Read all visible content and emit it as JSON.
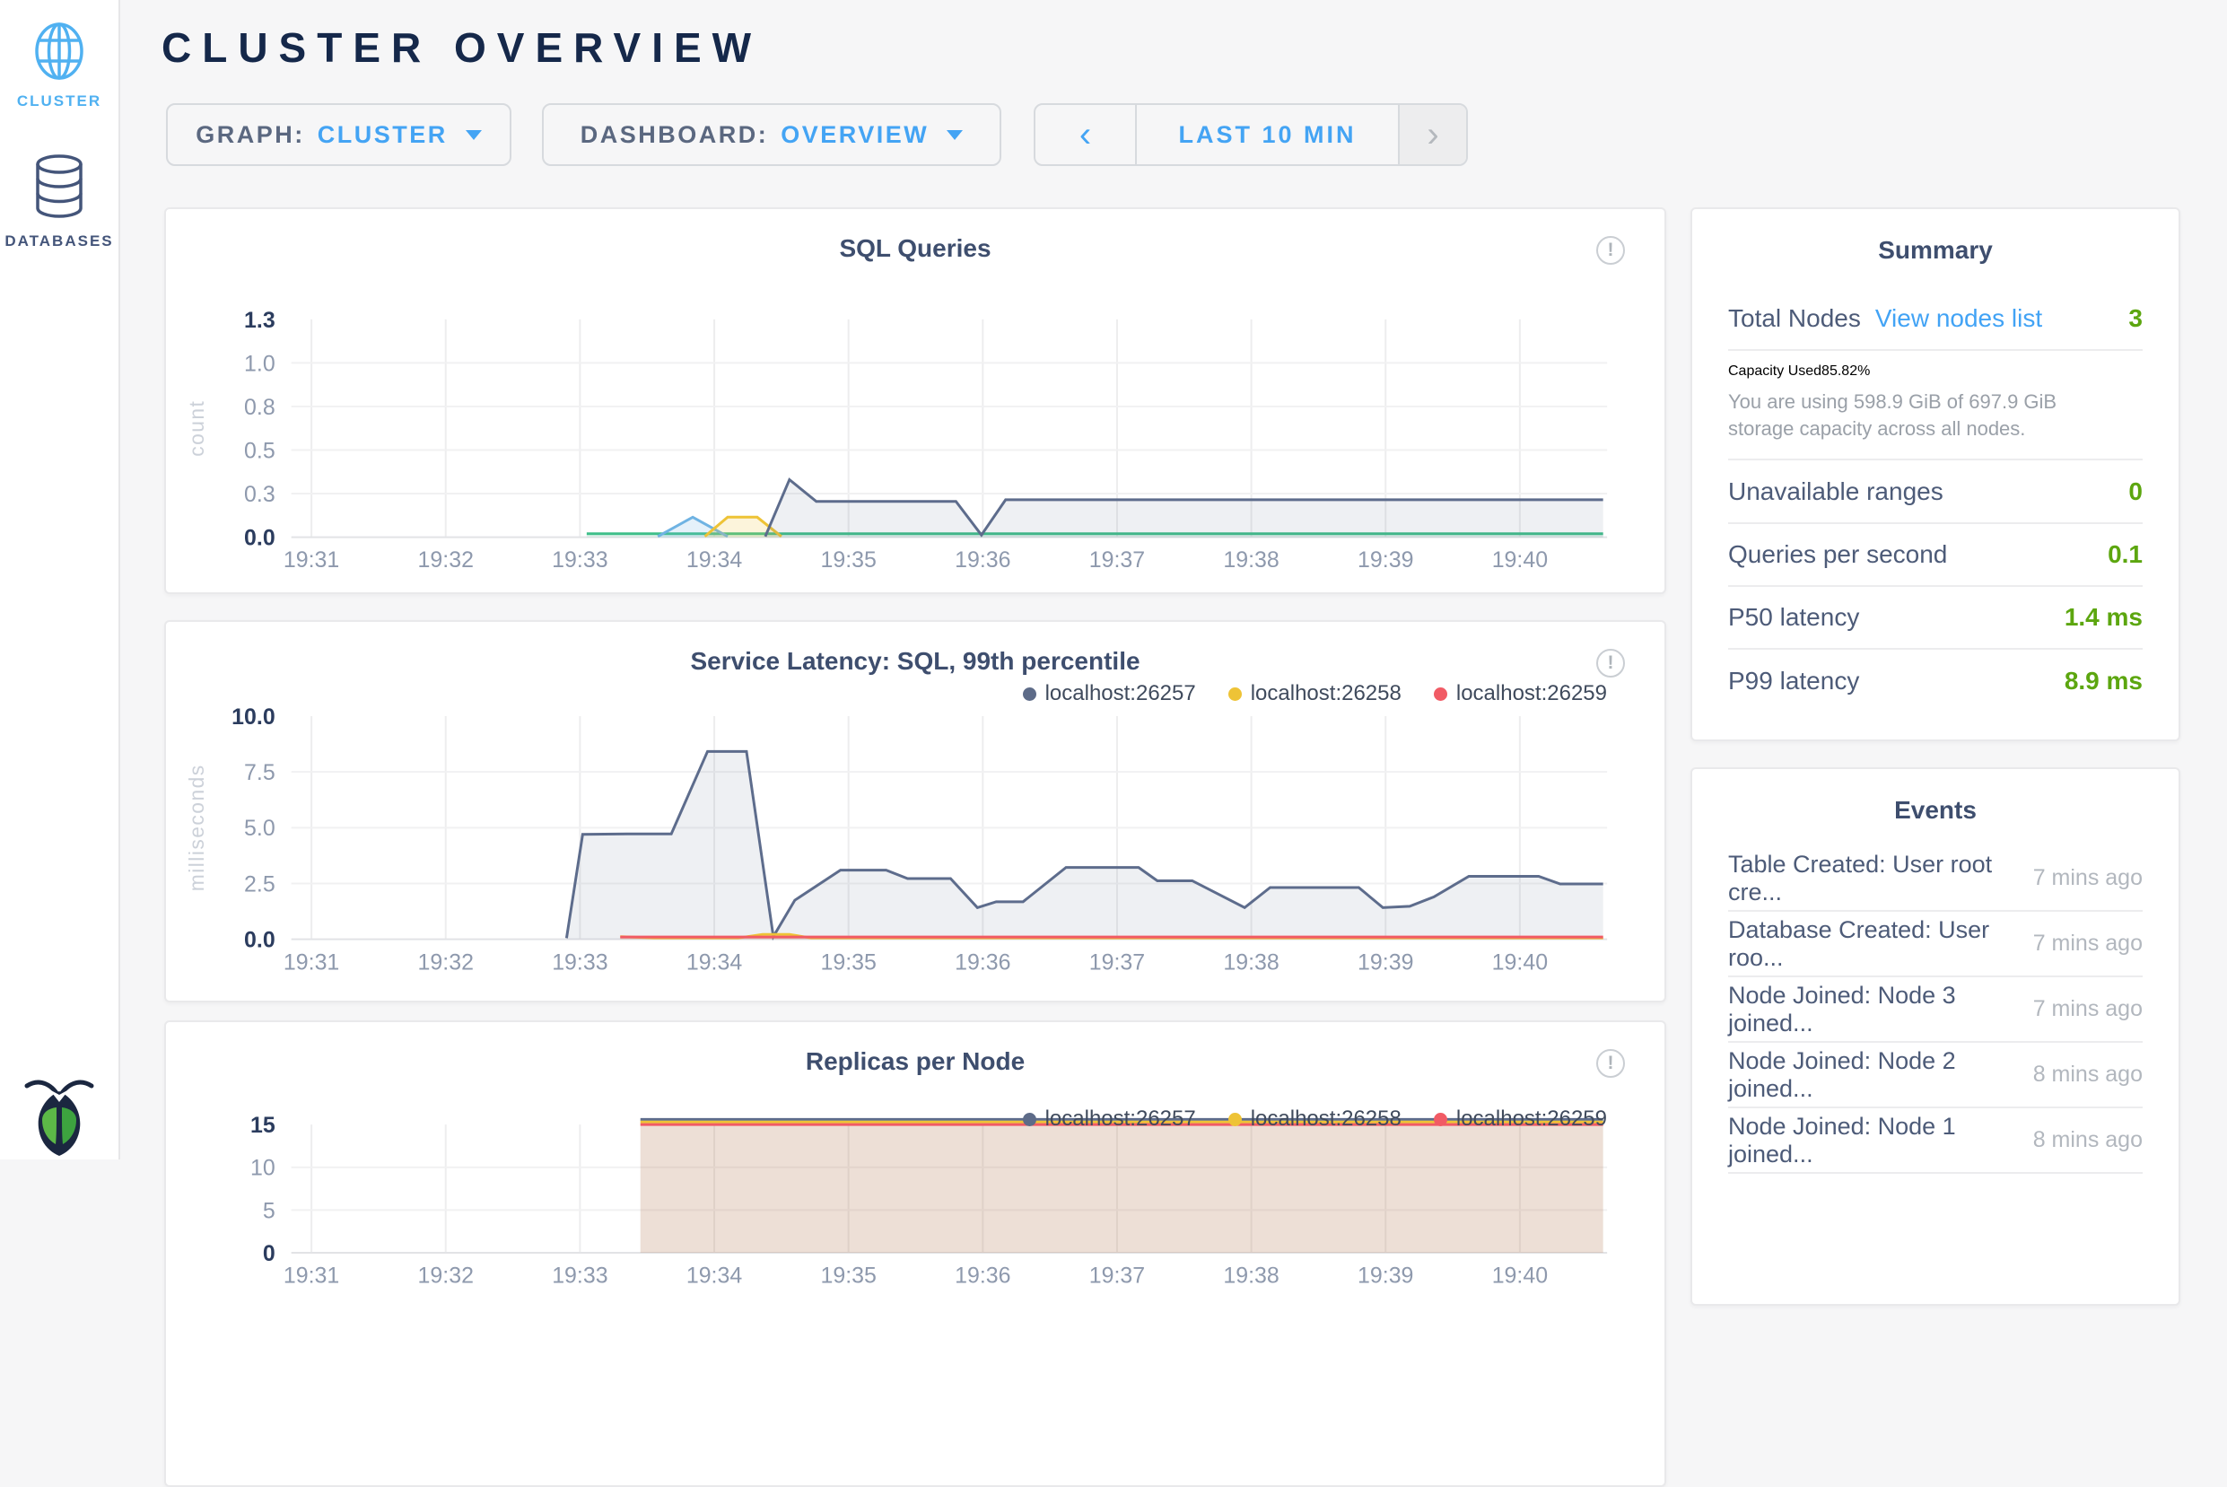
{
  "app": {
    "title": "CLUSTER OVERVIEW"
  },
  "sidebar": {
    "items": [
      {
        "label": "CLUSTER"
      },
      {
        "label": "DATABASES"
      }
    ]
  },
  "controls": {
    "graph": {
      "label": "GRAPH:",
      "value": "CLUSTER"
    },
    "dashboard": {
      "label": "DASHBOARD:",
      "value": "OVERVIEW"
    },
    "time": {
      "range": "LAST 10 MIN",
      "prev": "‹",
      "next": "›"
    }
  },
  "summary": {
    "title": "Summary",
    "total_nodes_label": "Total Nodes",
    "view_nodes_link": "View nodes list",
    "total_nodes_value": "3",
    "capacity_label": "Capacity Used",
    "capacity_value": "85.82%",
    "capacity_description": "You are using 598.9 GiB of 697.9 GiB storage capacity across all nodes.",
    "rows": [
      {
        "label": "Unavailable ranges",
        "value": "0"
      },
      {
        "label": "Queries per second",
        "value": "0.1"
      },
      {
        "label": "P50 latency",
        "value": "1.4 ms"
      },
      {
        "label": "P99 latency",
        "value": "8.9 ms"
      }
    ]
  },
  "events": {
    "title": "Events",
    "items": [
      {
        "text": "Table Created: User root cre...",
        "time": "7 mins ago"
      },
      {
        "text": "Database Created: User roo...",
        "time": "7 mins ago"
      },
      {
        "text": "Node Joined: Node 3 joined...",
        "time": "7 mins ago"
      },
      {
        "text": "Node Joined: Node 2 joined...",
        "time": "8 mins ago"
      },
      {
        "text": "Node Joined: Node 1 joined...",
        "time": "8 mins ago"
      }
    ]
  },
  "colors": {
    "accent_blue": "#44a4f4",
    "value_green": "#5ca60f",
    "title_navy": "#15284a",
    "series_navy": "#5d6c8c",
    "series_yellow": "#eec336",
    "series_red": "#f15b65",
    "series_green": "#3fbf8a",
    "series_lightblue": "#6fb3e3"
  },
  "chart_data": [
    {
      "type": "area",
      "title": "SQL Queries",
      "ylabel": "count",
      "xlabel": "",
      "xlim": [
        30.85,
        40.65
      ],
      "ylim": [
        0,
        1.25
      ],
      "grid": true,
      "legend": false,
      "xticks": [
        {
          "v": 31,
          "label": "19:31"
        },
        {
          "v": 32,
          "label": "19:32"
        },
        {
          "v": 33,
          "label": "19:33"
        },
        {
          "v": 34,
          "label": "19:34"
        },
        {
          "v": 35,
          "label": "19:35"
        },
        {
          "v": 36,
          "label": "19:36"
        },
        {
          "v": 37,
          "label": "19:37"
        },
        {
          "v": 38,
          "label": "19:38"
        },
        {
          "v": 39,
          "label": "19:39"
        },
        {
          "v": 40,
          "label": "19:40"
        }
      ],
      "yticks": [
        {
          "v": 0,
          "label": "0.0",
          "strong": true
        },
        {
          "v": 0.25,
          "label": "0.3"
        },
        {
          "v": 0.5,
          "label": "0.5"
        },
        {
          "v": 0.75,
          "label": "0.8"
        },
        {
          "v": 1.0,
          "label": "1.0"
        },
        {
          "v": 1.25,
          "label": "1.3",
          "strong": true
        }
      ],
      "series": [
        {
          "name": "series-green",
          "color": "#3fbf8a",
          "fill": "rgba(63,191,138,0.12)",
          "points": [
            [
              33.05,
              0.02
            ],
            [
              40.62,
              0.02
            ]
          ]
        },
        {
          "name": "series-lightblue",
          "color": "#6fb3e3",
          "fill": "rgba(111,179,227,0.18)",
          "points": [
            [
              33.58,
              0.004
            ],
            [
              33.84,
              0.115
            ],
            [
              34.1,
              0.004
            ]
          ]
        },
        {
          "name": "series-yellow",
          "color": "#eec336",
          "fill": "rgba(238,195,54,0.18)",
          "points": [
            [
              33.93,
              0.004
            ],
            [
              34.1,
              0.115
            ],
            [
              34.32,
              0.115
            ],
            [
              34.5,
              0.004
            ]
          ]
        },
        {
          "name": "series-navy",
          "color": "#5d6c8c",
          "fill": "rgba(93,108,140,0.10)",
          "points": [
            [
              34.38,
              0.004
            ],
            [
              34.56,
              0.33
            ],
            [
              34.76,
              0.205
            ],
            [
              35.8,
              0.205
            ],
            [
              35.99,
              0.012
            ],
            [
              36.17,
              0.215
            ],
            [
              40.62,
              0.215
            ]
          ]
        }
      ]
    },
    {
      "type": "area",
      "title": "Service Latency: SQL, 99th percentile",
      "ylabel": "milliseconds",
      "xlabel": "",
      "xlim": [
        30.85,
        40.65
      ],
      "ylim": [
        0,
        10
      ],
      "grid": true,
      "legend": true,
      "legend_items": [
        {
          "name": "localhost:26257",
          "color": "#5d6b88"
        },
        {
          "name": "localhost:26258",
          "color": "#eec336"
        },
        {
          "name": "localhost:26259",
          "color": "#f15b65"
        }
      ],
      "xticks": [
        {
          "v": 31,
          "label": "19:31"
        },
        {
          "v": 32,
          "label": "19:32"
        },
        {
          "v": 33,
          "label": "19:33"
        },
        {
          "v": 34,
          "label": "19:34"
        },
        {
          "v": 35,
          "label": "19:35"
        },
        {
          "v": 36,
          "label": "19:36"
        },
        {
          "v": 37,
          "label": "19:37"
        },
        {
          "v": 38,
          "label": "19:38"
        },
        {
          "v": 39,
          "label": "19:39"
        },
        {
          "v": 40,
          "label": "19:40"
        }
      ],
      "yticks": [
        {
          "v": 0,
          "label": "0.0",
          "strong": true
        },
        {
          "v": 2.5,
          "label": "2.5"
        },
        {
          "v": 5,
          "label": "5.0"
        },
        {
          "v": 7.5,
          "label": "7.5"
        },
        {
          "v": 10,
          "label": "10.0",
          "strong": true
        }
      ],
      "series": [
        {
          "name": "localhost:26257",
          "color": "#5d6c8c",
          "fill": "rgba(93,108,140,0.10)",
          "points": [
            [
              32.9,
              0.05
            ],
            [
              33.02,
              4.7
            ],
            [
              33.35,
              4.72
            ],
            [
              33.68,
              4.72
            ],
            [
              33.95,
              8.42
            ],
            [
              34.24,
              8.42
            ],
            [
              34.44,
              0.12
            ],
            [
              34.6,
              1.75
            ],
            [
              34.94,
              3.1
            ],
            [
              35.28,
              3.1
            ],
            [
              35.44,
              2.72
            ],
            [
              35.76,
              2.72
            ],
            [
              35.96,
              1.42
            ],
            [
              36.1,
              1.68
            ],
            [
              36.3,
              1.68
            ],
            [
              36.62,
              3.22
            ],
            [
              37.16,
              3.22
            ],
            [
              37.3,
              2.62
            ],
            [
              37.56,
              2.62
            ],
            [
              37.95,
              1.42
            ],
            [
              38.14,
              2.32
            ],
            [
              38.8,
              2.32
            ],
            [
              38.98,
              1.42
            ],
            [
              39.18,
              1.48
            ],
            [
              39.36,
              1.9
            ],
            [
              39.62,
              2.82
            ],
            [
              40.14,
              2.82
            ],
            [
              40.3,
              2.48
            ],
            [
              40.62,
              2.48
            ]
          ]
        },
        {
          "name": "localhost:26258",
          "color": "#eec336",
          "fill": "rgba(238,195,54,0.15)",
          "points": [
            [
              33.3,
              0.12
            ],
            [
              33.55,
              0.06
            ],
            [
              34.18,
              0.06
            ],
            [
              34.36,
              0.22
            ],
            [
              34.56,
              0.22
            ],
            [
              34.72,
              0.06
            ],
            [
              40.62,
              0.06
            ]
          ]
        },
        {
          "name": "localhost:26259",
          "color": "#f15b65",
          "fill": "rgba(241,91,101,0.12)",
          "points": [
            [
              33.3,
              0.1
            ],
            [
              40.62,
              0.1
            ]
          ]
        }
      ]
    },
    {
      "type": "area",
      "title": "Replicas per Node",
      "ylabel": "",
      "xlabel": "",
      "xlim": [
        30.85,
        40.65
      ],
      "ylim": [
        0,
        15
      ],
      "grid": true,
      "legend": true,
      "legend_items": [
        {
          "name": "localhost:26257",
          "color": "#5d6b88"
        },
        {
          "name": "localhost:26258",
          "color": "#eec336"
        },
        {
          "name": "localhost:26259",
          "color": "#f15b65"
        }
      ],
      "xticks": [
        {
          "v": 31,
          "label": "19:31"
        },
        {
          "v": 32,
          "label": "19:32"
        },
        {
          "v": 33,
          "label": "19:33"
        },
        {
          "v": 34,
          "label": "19:34"
        },
        {
          "v": 35,
          "label": "19:35"
        },
        {
          "v": 36,
          "label": "19:36"
        },
        {
          "v": 37,
          "label": "19:37"
        },
        {
          "v": 38,
          "label": "19:38"
        },
        {
          "v": 39,
          "label": "19:39"
        },
        {
          "v": 40,
          "label": "19:40"
        }
      ],
      "yticks": [
        {
          "v": 0,
          "label": "0",
          "strong": true
        },
        {
          "v": 5,
          "label": "5"
        },
        {
          "v": 10,
          "label": "10"
        },
        {
          "v": 15,
          "label": "15",
          "strong": true
        }
      ],
      "series": [
        {
          "name": "localhost:26257",
          "color": "#5d6c8c",
          "fill": "rgba(93,108,140,0.10)",
          "points": [
            [
              33.45,
              15.6
            ],
            [
              40.62,
              15.6
            ]
          ]
        },
        {
          "name": "localhost:26258",
          "color": "#eec336",
          "fill": "rgba(238,195,54,0.10)",
          "points": [
            [
              33.45,
              15.3
            ],
            [
              40.62,
              15.3
            ]
          ]
        },
        {
          "name": "localhost:26259",
          "color": "#f15b65",
          "fill": "rgba(241,91,101,0.08)",
          "points": [
            [
              33.45,
              15.0
            ],
            [
              40.62,
              15.0
            ]
          ]
        }
      ]
    }
  ]
}
